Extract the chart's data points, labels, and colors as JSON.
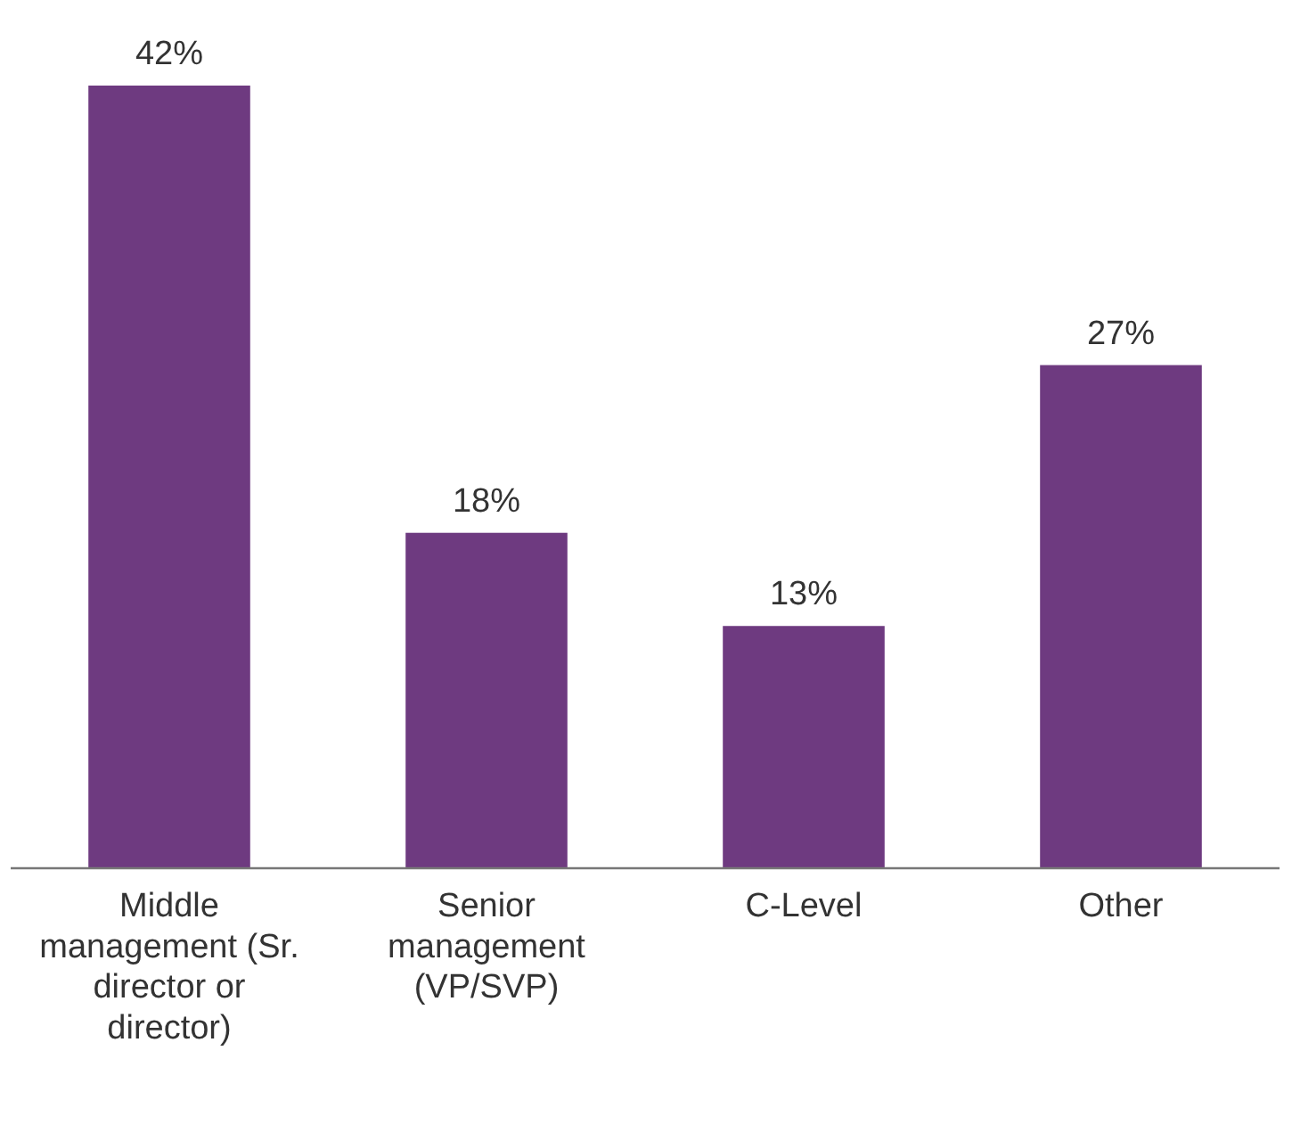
{
  "chart_data": {
    "type": "bar",
    "categories": [
      "Middle management (Sr. director or director)",
      "Senior management (VP/SVP)",
      "C-Level",
      "Other"
    ],
    "values": [
      42,
      18,
      13,
      27
    ],
    "value_labels": [
      "42%",
      "18%",
      "13%",
      "27%"
    ],
    "color": "#6e3a80"
  }
}
